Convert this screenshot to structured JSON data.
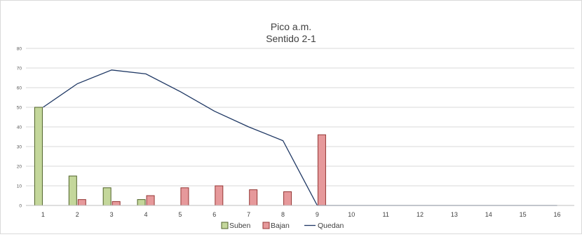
{
  "chart_data": {
    "type": "bar",
    "title": "Pico a.m.",
    "subtitle": "Sentido 2-1",
    "categories": [
      "1",
      "2",
      "3",
      "4",
      "5",
      "6",
      "7",
      "8",
      "9",
      "10",
      "11",
      "12",
      "13",
      "14",
      "15",
      "16"
    ],
    "ylim": [
      0,
      80
    ],
    "yticks": [
      0,
      10,
      20,
      30,
      40,
      50,
      60,
      70,
      80
    ],
    "grid": true,
    "legend_position": "bottom",
    "series": [
      {
        "name": "Suben",
        "kind": "bar",
        "color": "#c4d79b",
        "stroke": "#4f6228",
        "values": [
          50,
          15,
          9,
          3,
          0,
          0,
          0,
          0,
          0,
          0,
          0,
          0,
          0,
          0,
          0,
          0
        ]
      },
      {
        "name": "Bajan",
        "kind": "bar",
        "color": "#e6999b",
        "stroke": "#943634",
        "values": [
          0,
          3,
          2,
          5,
          9,
          10,
          8,
          7,
          36,
          0,
          0,
          0,
          0,
          0,
          0,
          0
        ]
      },
      {
        "name": "Quedan",
        "kind": "line",
        "color": "#1f3864",
        "values": [
          50,
          62,
          69,
          67,
          58,
          48,
          40,
          33,
          0,
          0,
          0,
          0,
          0,
          0,
          0,
          0
        ]
      }
    ]
  }
}
